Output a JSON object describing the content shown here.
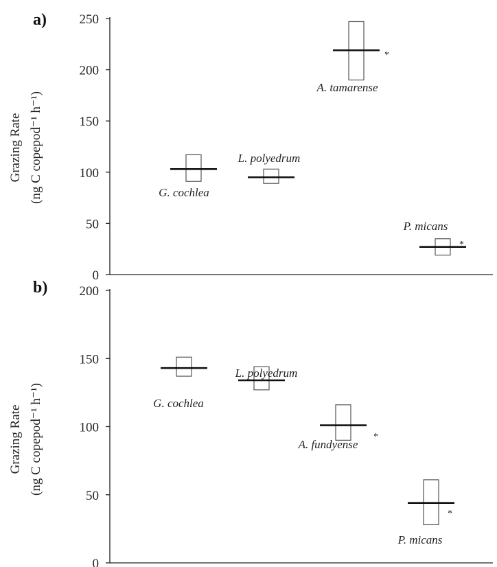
{
  "chart_data": [
    {
      "panel": "a)",
      "type": "box",
      "ylabel_line1": "Grazing Rate",
      "ylabel_line2": "(ng C copepod⁻¹ h⁻¹)",
      "ylim": [
        0,
        250
      ],
      "yticks": [
        "0",
        "50",
        "100",
        "150",
        "200",
        "250"
      ],
      "categories": [
        {
          "label": "G. cochlea",
          "mean": 103,
          "low": 91,
          "high": 117,
          "significant": false
        },
        {
          "label": "L. polyedrum",
          "mean": 95,
          "low": 89,
          "high": 103,
          "significant": false
        },
        {
          "label": "A. tamarense",
          "mean": 219,
          "low": 190,
          "high": 247,
          "significant": true
        },
        {
          "label": "P. micans",
          "mean": 27,
          "low": 19,
          "high": 35,
          "significant": true
        }
      ],
      "marker": "*"
    },
    {
      "panel": "b)",
      "type": "box",
      "ylabel_line1": "Grazing Rate",
      "ylabel_line2": "(ng C copepod⁻¹ h⁻¹)",
      "ylim": [
        0,
        200
      ],
      "yticks": [
        "0",
        "50",
        "100",
        "150",
        "200"
      ],
      "categories": [
        {
          "label": "G. cochlea",
          "mean": 143,
          "low": 137,
          "high": 151,
          "significant": false
        },
        {
          "label": "L. polyedrum",
          "mean": 134,
          "low": 127,
          "high": 144,
          "significant": false
        },
        {
          "label": "A. fundyense",
          "mean": 101,
          "low": 90,
          "high": 116,
          "significant": true
        },
        {
          "label": "P. micans",
          "mean": 44,
          "low": 28,
          "high": 61,
          "significant": true
        }
      ],
      "marker": "*"
    }
  ]
}
